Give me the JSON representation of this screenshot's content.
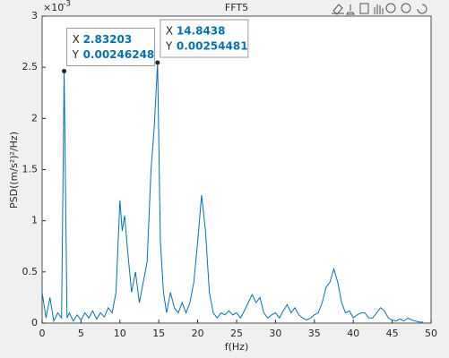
{
  "chart_data": {
    "type": "line",
    "title": "FFT5",
    "x_label": "f(Hz)",
    "y_label": "PSD((m/s²)²/Hz)",
    "y_exponent": {
      "base": "×10",
      "power": "-3"
    },
    "xlim": [
      0,
      50
    ],
    "xticks": [
      0,
      5,
      10,
      15,
      20,
      25,
      30,
      35,
      40,
      45,
      50
    ],
    "ylim": [
      0,
      3
    ],
    "yticks": [
      0,
      0.5,
      1,
      1.5,
      2,
      2.5,
      3
    ],
    "series": [
      {
        "color": "#0072BD",
        "x": [
          0,
          0.5,
          1,
          1.5,
          2,
          2.5,
          2.83203,
          3.2,
          3.5,
          4,
          4.5,
          5,
          5.5,
          6,
          6.5,
          7,
          7.5,
          8,
          8.5,
          9,
          9.5,
          10,
          10.3,
          10.6,
          11,
          11.5,
          12,
          12.5,
          13,
          13.5,
          14,
          14.4,
          14.8438,
          15.2,
          15.6,
          16,
          16.5,
          17,
          17.5,
          18,
          18.5,
          19,
          19.5,
          20,
          20.5,
          21,
          21.5,
          22,
          22.5,
          23,
          23.5,
          24,
          24.5,
          25,
          25.5,
          26,
          26.5,
          27,
          27.5,
          28,
          28.5,
          29,
          29.5,
          30,
          30.5,
          31,
          31.5,
          32,
          32.5,
          33,
          33.5,
          34,
          34.5,
          35,
          35.5,
          36,
          36.5,
          37,
          37.5,
          38,
          38.5,
          39,
          39.5,
          40,
          40.5,
          41,
          41.5,
          42,
          42.5,
          43,
          43.5,
          44,
          44.5,
          45,
          45.5,
          46,
          46.5,
          47,
          47.5,
          48,
          48.5,
          49
        ],
        "values": [
          0.3,
          0.05,
          0.25,
          0.02,
          0.1,
          0.05,
          2.46248,
          0.05,
          0.1,
          0.02,
          0.08,
          0.03,
          0.1,
          0.05,
          0.12,
          0.04,
          0.1,
          0.06,
          0.15,
          0.1,
          0.3,
          1.2,
          0.9,
          1.05,
          0.7,
          0.3,
          0.5,
          0.2,
          0.4,
          0.6,
          1.5,
          1.9,
          2.54481,
          0.8,
          0.3,
          0.1,
          0.3,
          0.15,
          0.1,
          0.2,
          0.1,
          0.2,
          0.4,
          0.8,
          1.25,
          0.9,
          0.3,
          0.1,
          0.05,
          0.1,
          0.08,
          0.12,
          0.08,
          0.1,
          0.05,
          0.12,
          0.2,
          0.28,
          0.2,
          0.25,
          0.1,
          0.05,
          0.08,
          0.1,
          0.05,
          0.12,
          0.18,
          0.1,
          0.15,
          0.08,
          0.05,
          0.03,
          0.05,
          0.08,
          0.1,
          0.2,
          0.35,
          0.4,
          0.53,
          0.4,
          0.2,
          0.1,
          0.12,
          0.05,
          0.08,
          0.1,
          0.1,
          0.05,
          0.05,
          0.1,
          0.15,
          0.12,
          0.05,
          0.03,
          0.02,
          0.04,
          0.02,
          0.05,
          0.03,
          0.02,
          0.01,
          0.01
        ]
      }
    ],
    "datatips": [
      {
        "x_name": "X",
        "x_text": "2.83203",
        "y_name": "Y",
        "y_text": "0.00246248"
      },
      {
        "x_name": "X",
        "x_text": "14.8438",
        "y_name": "Y",
        "y_text": "0.00254481"
      }
    ]
  }
}
